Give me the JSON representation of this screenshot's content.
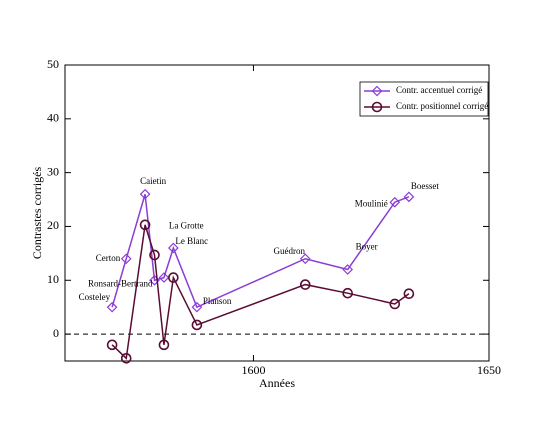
{
  "chart_data": {
    "type": "line",
    "x_label": "Années",
    "y_label": "Contrastes corrigés",
    "x": [
      1570,
      1573,
      1577,
      1579,
      1581,
      1583,
      1588,
      1611,
      1620,
      1630,
      1633
    ],
    "point_labels": [
      "Costeley",
      "Certon",
      "Caietin",
      "Ronsard-Bertrand",
      "La Grotte",
      "Le Blanc",
      "Planson",
      "Guédron",
      "Boyer",
      "Moulinié",
      "Boesset"
    ],
    "series": [
      {
        "name": "Contr. accentuel corrigé",
        "color": "#8a3cd6",
        "marker": "diamond",
        "values": [
          5,
          14,
          26,
          10,
          10.5,
          16,
          5,
          14,
          12,
          24.5,
          25.5
        ]
      },
      {
        "name": "Contr. positionnel corrigé",
        "color": "#5a0c33",
        "marker": "circle",
        "values": [
          -2,
          -4.5,
          20.3,
          14.7,
          -2,
          10.5,
          1.7,
          9.2,
          7.6,
          5.6,
          7.5
        ]
      }
    ],
    "xlim": [
      1560,
      1650
    ],
    "xticks": [
      1600,
      1650
    ],
    "ylim": [
      -5,
      50
    ],
    "yticks": [
      0,
      10,
      20,
      30,
      40,
      50
    ],
    "hline": 0,
    "legend": "upper right",
    "grid": false
  }
}
